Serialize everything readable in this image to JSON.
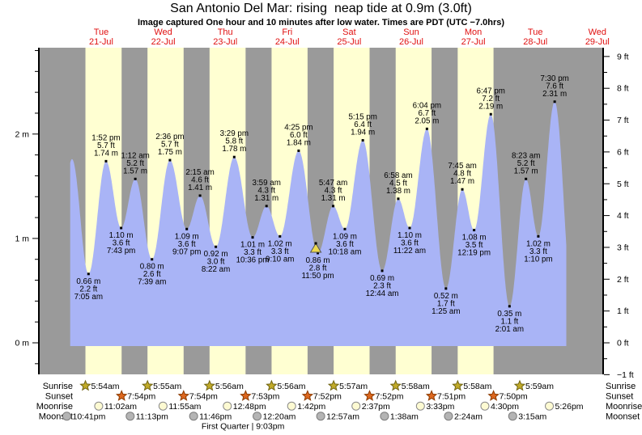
{
  "chart_data": {
    "type": "area",
    "title": "San Antonio Del Mar: rising  neap tide at 0.9m (3.0ft)",
    "subtitle": "Image captured One hour and 10 minutes after low water. Times are PDT (UTC −7.0hrs)",
    "y_left_ticks": [
      {
        "v": 0,
        "label": "0 m"
      },
      {
        "v": 1,
        "label": "1 m"
      },
      {
        "v": 2,
        "label": "2 m"
      }
    ],
    "y_right_ticks": [
      {
        "v": 9,
        "label": "9 ft"
      },
      {
        "v": 8,
        "label": "8 ft"
      },
      {
        "v": 7,
        "label": "7 ft"
      },
      {
        "v": 6,
        "label": "6 ft"
      },
      {
        "v": 5,
        "label": "5 ft"
      },
      {
        "v": 4,
        "label": "4 ft"
      },
      {
        "v": 3,
        "label": "3 ft"
      },
      {
        "v": 2,
        "label": "2 ft"
      },
      {
        "v": 1,
        "label": "1 ft"
      },
      {
        "v": 0,
        "label": "0 ft"
      },
      {
        "v": -1,
        "label": "−1 ft"
      }
    ],
    "y_right_range": [
      -1,
      9
    ],
    "days": [
      {
        "name": "Tue",
        "date": "21-Jul"
      },
      {
        "name": "Wed",
        "date": "22-Jul"
      },
      {
        "name": "Thu",
        "date": "23-Jul"
      },
      {
        "name": "Fri",
        "date": "24-Jul"
      },
      {
        "name": "Sat",
        "date": "25-Jul"
      },
      {
        "name": "Sun",
        "date": "26-Jul"
      },
      {
        "name": "Mon",
        "date": "27-Jul"
      },
      {
        "name": "Tue",
        "date": "28-Jul"
      },
      {
        "name": "Wed",
        "date": "29-Jul"
      }
    ],
    "extremes": [
      {
        "kind": "low",
        "day": 0,
        "time": "7:05 am",
        "ft": "2.2",
        "m": "0.66"
      },
      {
        "kind": "high",
        "day": 0,
        "time": "1:52 pm",
        "ft": "5.7",
        "m": "1.74"
      },
      {
        "kind": "low",
        "day": 0,
        "time": "7:43 pm",
        "ft": "3.6",
        "m": "1.10"
      },
      {
        "kind": "high",
        "day": 1,
        "time": "1:12 am",
        "ft": "5.2",
        "m": "1.57"
      },
      {
        "kind": "low",
        "day": 1,
        "time": "7:39 am",
        "ft": "2.6",
        "m": "0.80"
      },
      {
        "kind": "high",
        "day": 1,
        "time": "2:36 pm",
        "ft": "5.7",
        "m": "1.75"
      },
      {
        "kind": "low",
        "day": 1,
        "time": "9:07 pm",
        "ft": "3.6",
        "m": "1.09"
      },
      {
        "kind": "high",
        "day": 2,
        "time": "2:15 am",
        "ft": "4.6",
        "m": "1.41"
      },
      {
        "kind": "low",
        "day": 2,
        "time": "8:22 am",
        "ft": "3.0",
        "m": "0.92"
      },
      {
        "kind": "high",
        "day": 2,
        "time": "3:29 pm",
        "ft": "5.8",
        "m": "1.78"
      },
      {
        "kind": "low",
        "day": 2,
        "time": "10:36 pm",
        "ft": "3.3",
        "m": "1.01"
      },
      {
        "kind": "high",
        "day": 3,
        "time": "3:59 am",
        "ft": "4.3",
        "m": "1.31"
      },
      {
        "kind": "low",
        "day": 3,
        "time": "9:10 am",
        "ft": "3.3",
        "m": "1.02"
      },
      {
        "kind": "high",
        "day": 3,
        "time": "4:25 pm",
        "ft": "6.0",
        "m": "1.84"
      },
      {
        "kind": "low",
        "day": 3,
        "time": "11:50 pm",
        "ft": "2.8",
        "m": "0.86"
      },
      {
        "kind": "high",
        "day": 4,
        "time": "5:47 am",
        "ft": "4.3",
        "m": "1.31"
      },
      {
        "kind": "low",
        "day": 4,
        "time": "10:18 am",
        "ft": "3.6",
        "m": "1.09"
      },
      {
        "kind": "high",
        "day": 4,
        "time": "5:15 pm",
        "ft": "6.4",
        "m": "1.94"
      },
      {
        "kind": "low",
        "day": 5,
        "time": "12:44 am",
        "ft": "2.3",
        "m": "0.69"
      },
      {
        "kind": "high",
        "day": 5,
        "time": "6:58 am",
        "ft": "4.5",
        "m": "1.38"
      },
      {
        "kind": "low",
        "day": 5,
        "time": "11:22 am",
        "ft": "3.6",
        "m": "1.10"
      },
      {
        "kind": "high",
        "day": 5,
        "time": "6:04 pm",
        "ft": "6.7",
        "m": "2.05"
      },
      {
        "kind": "low",
        "day": 6,
        "time": "1:25 am",
        "ft": "1.7",
        "m": "0.52"
      },
      {
        "kind": "high",
        "day": 6,
        "time": "7:45 am",
        "ft": "4.8",
        "m": "1.47"
      },
      {
        "kind": "low",
        "day": 6,
        "time": "12:19 pm",
        "ft": "3.5",
        "m": "1.08"
      },
      {
        "kind": "high",
        "day": 6,
        "time": "6:47 pm",
        "ft": "7.2",
        "m": "2.19"
      },
      {
        "kind": "low",
        "day": 7,
        "time": "2:01 am",
        "ft": "1.1",
        "m": "0.35"
      },
      {
        "kind": "high",
        "day": 7,
        "time": "8:23 am",
        "ft": "5.2",
        "m": "1.57"
      },
      {
        "kind": "low",
        "day": 7,
        "time": "1:10 pm",
        "ft": "3.3",
        "m": "1.02"
      },
      {
        "kind": "high",
        "day": 7,
        "time": "7:30 pm",
        "ft": "7.6",
        "m": "2.31"
      }
    ],
    "edge_extremes": {
      "lead": [
        {
          "t_hours": -5.3,
          "m": 0.68
        },
        {
          "t_hours": 0.7,
          "m": 1.76
        }
      ],
      "tail": [
        {
          "t_hours": 194.75,
          "m": 0.3
        }
      ]
    },
    "current_marker": {
      "day": 3,
      "time": "11:50 pm",
      "m": 0.86
    },
    "sunrise": [
      "5:54am",
      "5:55am",
      "5:56am",
      "5:56am",
      "5:57am",
      "5:58am",
      "5:58am",
      "5:59am"
    ],
    "sunset": [
      "7:54pm",
      "7:54pm",
      "7:53pm",
      "7:52pm",
      "7:52pm",
      "7:51pm",
      "7:50pm"
    ],
    "moonrise": [
      "11:02am",
      "11:55am",
      "12:48pm",
      "1:42pm",
      "2:37pm",
      "3:33pm",
      "4:30pm",
      "5:26pm"
    ],
    "moonset": [
      {
        "day": -1,
        "time": "10:41pm"
      },
      {
        "day": 0,
        "time": "11:13pm"
      },
      {
        "day": 1,
        "time": "11:46pm"
      },
      {
        "day": 3,
        "time": "12:20am"
      },
      {
        "day": 4,
        "time": "12:57am"
      },
      {
        "day": 5,
        "time": "1:38am"
      },
      {
        "day": 6,
        "time": "2:24am"
      },
      {
        "day": 7,
        "time": "3:15am"
      }
    ],
    "moon_phase": {
      "label": "First Quarter",
      "time": "9:03pm",
      "day": 2
    },
    "row_labels": [
      "Sunrise",
      "Sunset",
      "Moonrise",
      "Moonset"
    ],
    "colors": {
      "night": "#9a9a9a",
      "day": "#ffffd2",
      "water": "#a9b4f6",
      "day_label_red": "#e01010",
      "sunrise_star_fill": "#c2ab28",
      "sunrise_star_stroke": "#6f6414",
      "sunset_star_fill": "#dd671e",
      "sunset_star_stroke": "#8b3a00",
      "moonrise_fill": "#fdfad2",
      "moonrise_stroke": "#8a8a8a",
      "moonset_fill": "#b4b4b4",
      "moonset_stroke": "#7d7d7d",
      "marker_triangle": "#ecd84f"
    }
  }
}
